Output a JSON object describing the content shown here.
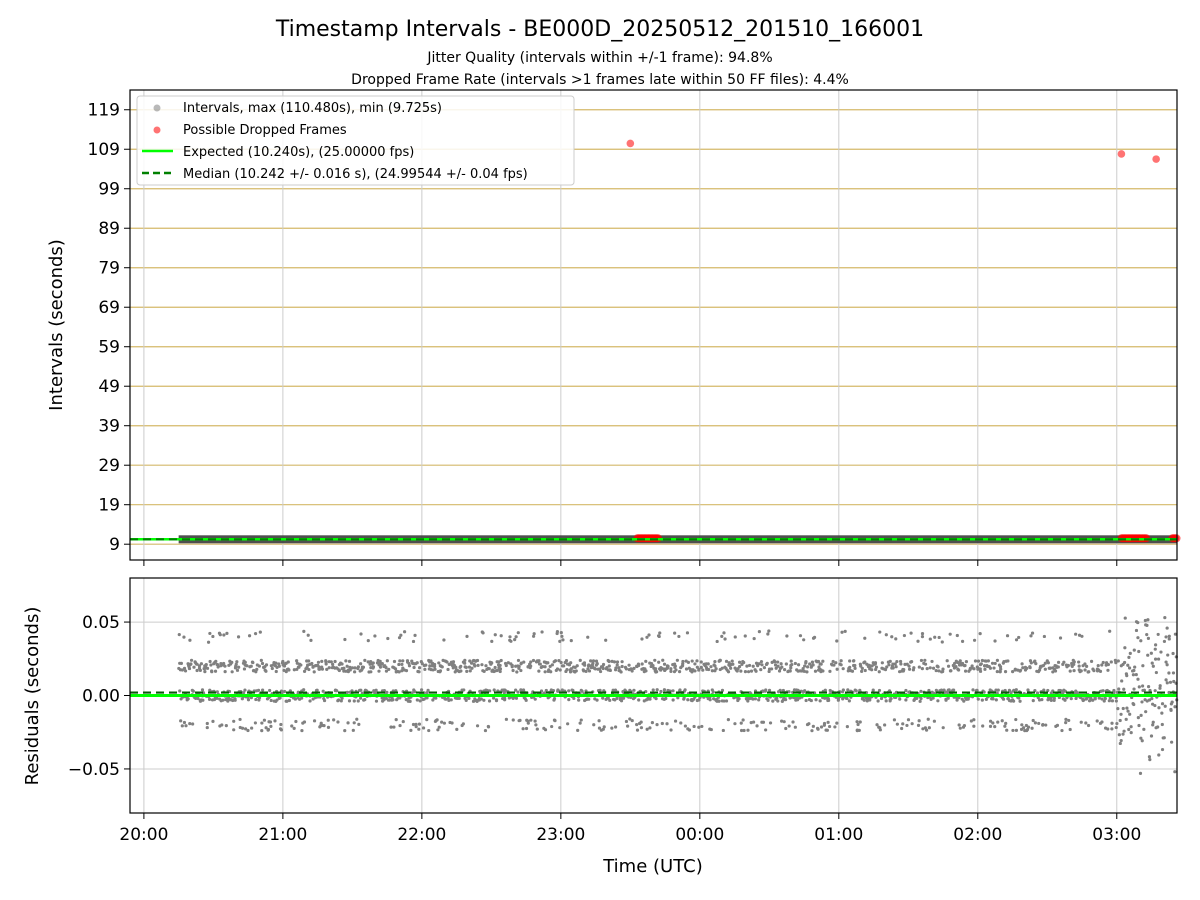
{
  "figure": {
    "title": "Timestamp Intervals - BE000D_20250512_201510_166001",
    "subtitle_1": "Jitter Quality (intervals within +/-1 frame): 94.8%",
    "subtitle_2": "Dropped Frame Rate (intervals >1 frames late within 50 FF files): 4.4%",
    "xlabel": "Time (UTC)"
  },
  "colors": {
    "points": "#808080",
    "dropped": "#ff0000",
    "expected": "#00ff00",
    "median": "#008000",
    "threshold_grid": "#d4b96a",
    "grid": "#cccccc"
  },
  "chart_data": [
    {
      "type": "scatter",
      "panel": "intervals",
      "ylabel": "Intervals (seconds)",
      "ylim": [
        5,
        124
      ],
      "yticks": [
        9,
        19,
        29,
        39,
        49,
        59,
        69,
        79,
        89,
        99,
        109,
        119
      ],
      "xlim": [
        "19:54",
        "03:26"
      ],
      "xticks": [
        "20:00",
        "21:00",
        "22:00",
        "23:00",
        "00:00",
        "01:00",
        "02:00",
        "03:00"
      ],
      "x_tick_labels_visible": false,
      "grid": "vertical, plus horizontal threshold lines at each y tick",
      "legend": {
        "placement": "top-left",
        "entries": [
          "Intervals, max (110.480s), min (9.725s)",
          "Possible Dropped Frames",
          "Expected (10.240s), (25.00000 fps)",
          "Median (10.242 +/- 0.016 s), (24.99544 +/- 0.04 fps)"
        ]
      },
      "series": [
        {
          "name": "Intervals, max (110.480s), min (9.725s)",
          "kind": "band",
          "x_range": [
            "20:15",
            "03:26"
          ],
          "y": 10.24
        },
        {
          "name": "Possible Dropped Frames",
          "kind": "points",
          "x": [
            "23:30",
            "03:02",
            "03:17"
          ],
          "y": [
            110.48,
            107.8,
            106.5
          ]
        },
        {
          "name": "Possible Dropped Frames (cluster near baseline)",
          "kind": "cluster",
          "x_ranges": [
            [
              "23:33",
              "23:42"
            ],
            [
              "03:02",
              "03:13"
            ],
            [
              "03:24",
              "03:26"
            ]
          ],
          "y": 10.5
        },
        {
          "name": "Expected (10.240s), (25.00000 fps)",
          "kind": "hline",
          "y": 10.24
        },
        {
          "name": "Median (10.242 +/- 0.016 s), (24.99544 +/- 0.04 fps)",
          "kind": "hline",
          "y": 10.242
        }
      ]
    },
    {
      "type": "scatter",
      "panel": "residuals",
      "ylabel": "Residuals (seconds)",
      "ylim": [
        -0.08,
        0.08
      ],
      "yticks": [
        -0.05,
        0.0,
        0.05
      ],
      "ytick_labels": [
        "−0.05",
        "0.00",
        "0.05"
      ],
      "xlim": [
        "19:54",
        "03:26"
      ],
      "xticks": [
        "20:00",
        "21:00",
        "22:00",
        "23:00",
        "00:00",
        "01:00",
        "02:00",
        "03:00"
      ],
      "grid": true,
      "series": [
        {
          "name": "Residuals",
          "kind": "points",
          "x_range": [
            "20:15",
            "03:26"
          ],
          "levels": [
            0.0,
            0.02,
            -0.02,
            0.04
          ],
          "spread": 0.004,
          "tail_extra_scatter_from": "03:00",
          "tail_max_abs": 0.055
        },
        {
          "name": "Expected",
          "kind": "hline",
          "y": 0.0
        },
        {
          "name": "Median",
          "kind": "hline",
          "y": 0.002
        }
      ]
    }
  ]
}
